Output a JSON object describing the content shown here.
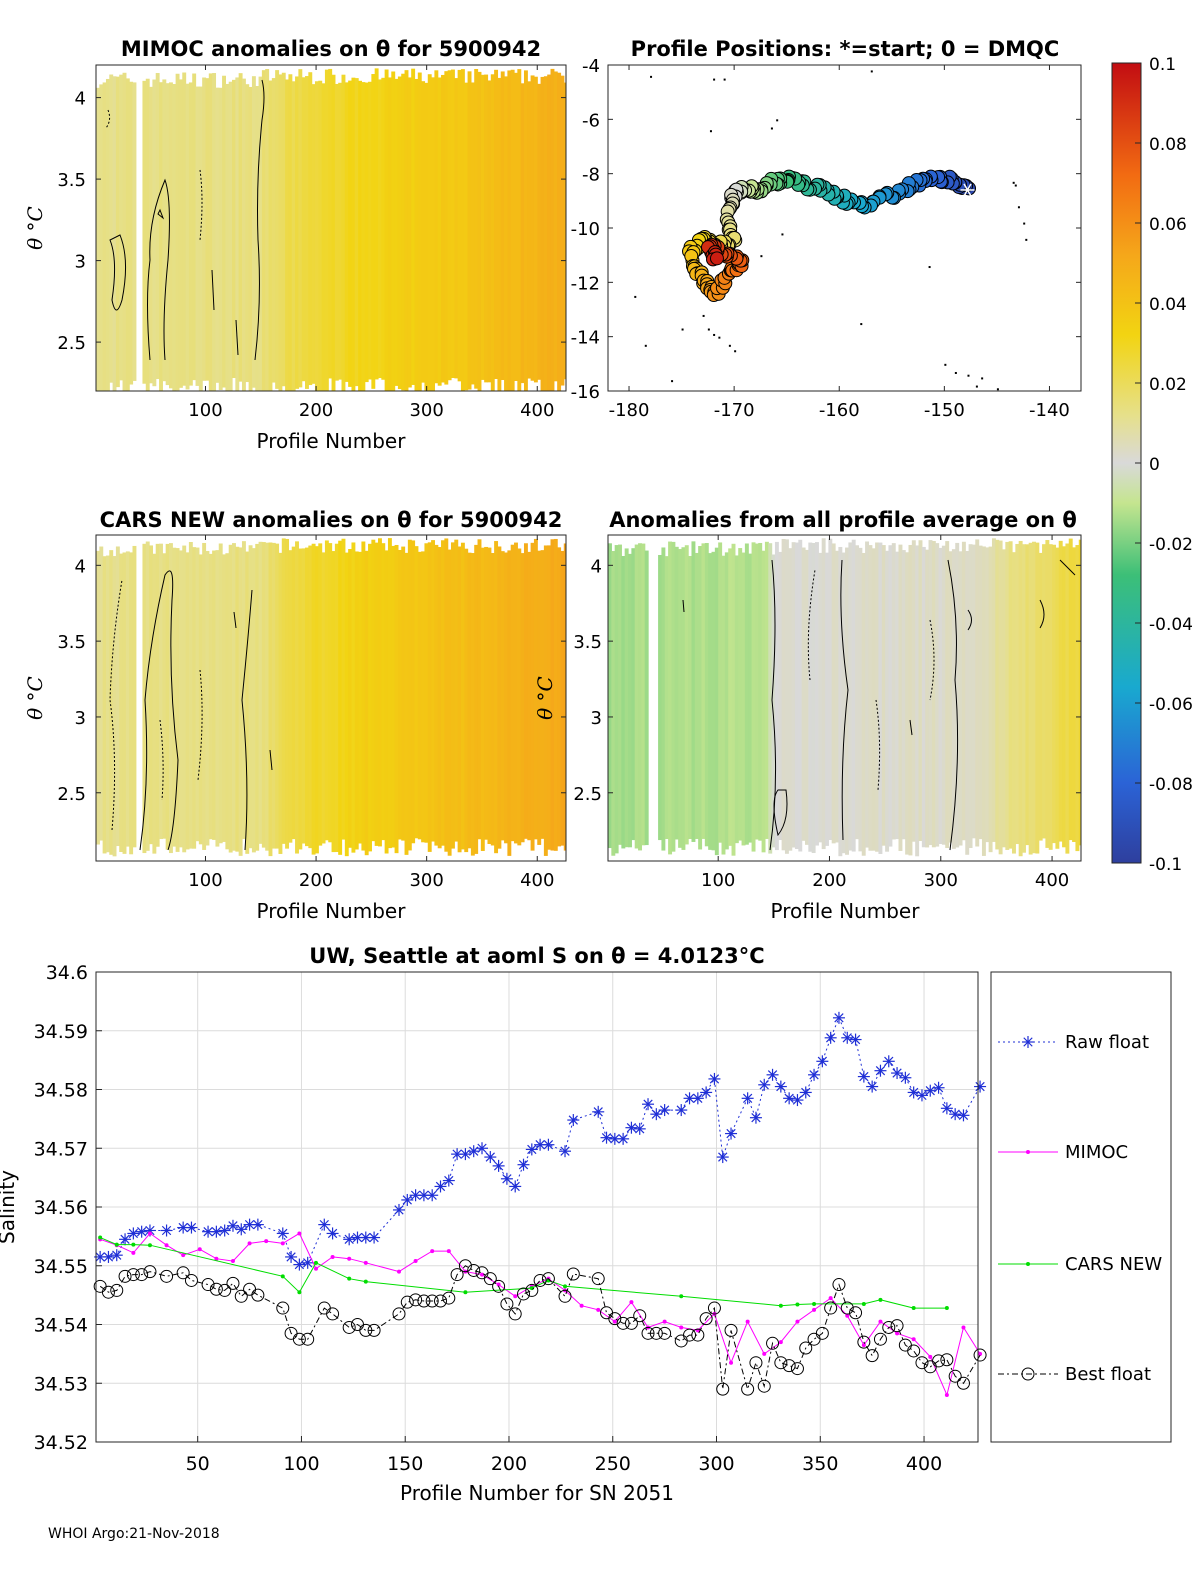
{
  "footer": "WHOI Argo:21-Nov-2018",
  "colors": {
    "raw": "#1f2fd6",
    "mimoc": "#ff00ff",
    "cars": "#00dd00",
    "best": "#000000",
    "grid": "#dcdcdc"
  },
  "colorbar": {
    "ticks": [
      "0.1",
      "0.08",
      "0.06",
      "0.04",
      "0.02",
      "0",
      "-0.02",
      "-0.04",
      "-0.06",
      "-0.08",
      "-0.1"
    ],
    "range": [
      -0.1,
      0.1
    ]
  },
  "chart_data": [
    {
      "type": "heatmap",
      "title": "MIMOC anomalies on θ  for 5900942",
      "xlabel": "Profile Number",
      "ylabel": "θ °C",
      "xlim": [
        1,
        426
      ],
      "ylim": [
        2.2,
        4.2
      ],
      "xticks": [
        "100",
        "200",
        "300",
        "400"
      ],
      "yticks": [
        "2.5",
        "3",
        "3.5",
        "4"
      ],
      "anomaly_trend": [
        [
          1,
          0.012
        ],
        [
          150,
          0.014
        ],
        [
          175,
          0.022
        ],
        [
          230,
          0.03
        ],
        [
          330,
          0.038
        ],
        [
          426,
          0.05
        ]
      ]
    },
    {
      "type": "scatter",
      "title": "Profile Positions: *=start; 0 = DMQC",
      "xlim": [
        -182,
        -137
      ],
      "ylim": [
        -16,
        -4
      ],
      "xticks": [
        "-180",
        "-170",
        "-160",
        "-150",
        "-140"
      ],
      "yticks": [
        "-4",
        "-6",
        "-8",
        "-10",
        "-12",
        "-14",
        "-16"
      ],
      "track": [
        [
          -147.8,
          -8.6
        ],
        [
          -149.2,
          -8.3
        ],
        [
          -151,
          -8.1
        ],
        [
          -153,
          -8.4
        ],
        [
          -155,
          -8.8
        ],
        [
          -157.5,
          -9.1
        ],
        [
          -159.5,
          -9.0
        ],
        [
          -161.5,
          -8.6
        ],
        [
          -163.5,
          -8.4
        ],
        [
          -165,
          -8.2
        ],
        [
          -166.5,
          -8.3
        ],
        [
          -167.8,
          -8.6
        ],
        [
          -169,
          -8.5
        ],
        [
          -170,
          -8.7
        ],
        [
          -170.6,
          -9.5
        ],
        [
          -170,
          -10.5
        ],
        [
          -171.5,
          -10.6
        ],
        [
          -173,
          -10.4
        ],
        [
          -174.2,
          -10.9
        ],
        [
          -173.5,
          -11.6
        ],
        [
          -172.5,
          -12.1
        ],
        [
          -171.8,
          -12.5
        ],
        [
          -170.5,
          -11.6
        ],
        [
          -169.2,
          -11.3
        ],
        [
          -170.8,
          -10.9
        ],
        [
          -172.5,
          -10.7
        ],
        [
          -171.6,
          -11.3
        ]
      ]
    },
    {
      "type": "heatmap",
      "title": "CARS NEW anomalies on θ for 5900942",
      "xlabel": "Profile Number",
      "ylabel": "θ °C",
      "xlim": [
        1,
        426
      ],
      "ylim": [
        2.05,
        4.2
      ],
      "xticks": [
        "100",
        "200",
        "300",
        "400"
      ],
      "yticks": [
        "2.5",
        "3",
        "3.5",
        "4"
      ],
      "anomaly_trend": [
        [
          1,
          0.012
        ],
        [
          150,
          0.014
        ],
        [
          175,
          0.024
        ],
        [
          240,
          0.034
        ],
        [
          330,
          0.042
        ],
        [
          426,
          0.052
        ]
      ]
    },
    {
      "type": "heatmap",
      "title": "Anomalies from all profile average on θ",
      "xlabel": "Profile Number",
      "ylabel": "θ °C",
      "xlim": [
        1,
        426
      ],
      "ylim": [
        2.05,
        4.2
      ],
      "xticks": [
        "100",
        "200",
        "300",
        "400"
      ],
      "yticks": [
        "2.5",
        "3",
        "3.5",
        "4"
      ],
      "anomaly_trend": [
        [
          1,
          -0.014
        ],
        [
          140,
          -0.012
        ],
        [
          150,
          0.001
        ],
        [
          330,
          0.003
        ],
        [
          360,
          0.012
        ],
        [
          426,
          0.026
        ]
      ]
    },
    {
      "type": "line",
      "title": "UW, Seattle at aoml S on θ = 4.0123°C",
      "xlabel": "Profile Number for SN 2051",
      "ylabel": "Salinity",
      "xlim": [
        1,
        426
      ],
      "ylim": [
        34.52,
        34.6
      ],
      "xticks": [
        50,
        100,
        150,
        200,
        250,
        300,
        350,
        400
      ],
      "yticks": [
        "34.52",
        "34.53",
        "34.54",
        "34.55",
        "34.56",
        "34.57",
        "34.58",
        "34.59",
        "34.6"
      ],
      "legend_position": "outside-right",
      "series": [
        {
          "name": "Raw float",
          "x": [
            3,
            7,
            11,
            15,
            19,
            23,
            27,
            35,
            43,
            47,
            55,
            59,
            63,
            67,
            71,
            75,
            79,
            91,
            95,
            99,
            103,
            111,
            115,
            123,
            127,
            131,
            135,
            147,
            151,
            155,
            159,
            163,
            167,
            171,
            175,
            179,
            183,
            187,
            191,
            195,
            199,
            203,
            207,
            211,
            215,
            219,
            227,
            231,
            243,
            247,
            251,
            255,
            259,
            263,
            267,
            271,
            275,
            283,
            287,
            291,
            295,
            299,
            303,
            307,
            315,
            319,
            323,
            327,
            331,
            335,
            339,
            343,
            347,
            351,
            355,
            359,
            363,
            367,
            371,
            375,
            379,
            383,
            387,
            391,
            395,
            399,
            403,
            407,
            411,
            415,
            419,
            427
          ],
          "y": [
            34.5515,
            34.5515,
            34.5518,
            34.5545,
            34.5555,
            34.5558,
            34.556,
            34.556,
            34.5565,
            34.5565,
            34.5558,
            34.5558,
            34.556,
            34.5568,
            34.5562,
            34.557,
            34.557,
            34.5555,
            34.5515,
            34.5502,
            34.5505,
            34.557,
            34.5555,
            34.5545,
            34.5548,
            34.5548,
            34.5548,
            34.5595,
            34.5612,
            34.562,
            34.562,
            34.562,
            34.5635,
            34.5645,
            34.569,
            34.569,
            34.5695,
            34.57,
            34.5685,
            34.567,
            34.5648,
            34.5635,
            34.5672,
            34.5698,
            34.5706,
            34.5706,
            34.5695,
            34.5748,
            34.5762,
            34.5718,
            34.5716,
            34.5716,
            34.5735,
            34.5733,
            34.5775,
            34.5758,
            34.5765,
            34.5765,
            34.5785,
            34.5785,
            34.5795,
            34.5818,
            34.5685,
            34.5725,
            34.5785,
            34.5752,
            34.5808,
            34.5825,
            34.5805,
            34.5785,
            34.5782,
            34.5795,
            34.5825,
            34.5848,
            34.5888,
            34.5922,
            34.5888,
            34.5885,
            34.5822,
            34.5805,
            34.5832,
            34.5848,
            34.5828,
            34.582,
            34.5795,
            34.579,
            34.5798,
            34.5803,
            34.5768,
            34.5758,
            34.5756,
            34.5805
          ]
        },
        {
          "name": "MIMOC",
          "x": [
            3,
            11,
            19,
            27,
            35,
            43,
            51,
            59,
            67,
            75,
            83,
            91,
            99,
            107,
            115,
            123,
            131,
            147,
            155,
            163,
            171,
            179,
            187,
            195,
            203,
            211,
            219,
            227,
            235,
            243,
            251,
            259,
            267,
            275,
            283,
            291,
            299,
            307,
            315,
            323,
            331,
            339,
            347,
            355,
            363,
            371,
            379,
            387,
            395,
            403,
            411,
            419,
            427
          ],
          "y": [
            34.5545,
            34.5535,
            34.5522,
            34.5555,
            34.5535,
            34.5518,
            34.5528,
            34.5512,
            34.5508,
            34.5538,
            34.5542,
            34.5538,
            34.5555,
            34.5495,
            34.5515,
            34.5512,
            34.5505,
            34.549,
            34.5508,
            34.5525,
            34.5525,
            34.549,
            34.5485,
            34.5468,
            34.5448,
            34.5465,
            34.5478,
            34.5458,
            34.5432,
            34.5425,
            34.5405,
            34.5438,
            34.5395,
            34.5405,
            34.5395,
            34.539,
            34.5418,
            34.5335,
            34.5405,
            34.535,
            34.537,
            34.5405,
            34.5425,
            34.5445,
            34.5415,
            34.5365,
            34.5405,
            34.5385,
            34.5375,
            34.5345,
            34.528,
            34.5395,
            34.535
          ]
        },
        {
          "name": "CARS NEW",
          "x": [
            3,
            11,
            19,
            27,
            91,
            99,
            107,
            123,
            131,
            179,
            211,
            219,
            227,
            283,
            331,
            339,
            347,
            371,
            379,
            395,
            411
          ],
          "y": [
            34.5548,
            34.5536,
            34.5536,
            34.5535,
            34.5482,
            34.5455,
            34.5505,
            34.5478,
            34.5473,
            34.5455,
            34.5462,
            34.5475,
            34.5465,
            34.5448,
            34.5432,
            34.5434,
            34.5435,
            34.5435,
            34.5442,
            34.5428,
            34.5428
          ]
        },
        {
          "name": "Best float",
          "x": [
            3,
            7,
            11,
            15,
            19,
            23,
            27,
            35,
            43,
            47,
            55,
            59,
            63,
            67,
            71,
            75,
            79,
            91,
            95,
            99,
            103,
            111,
            115,
            123,
            127,
            131,
            135,
            147,
            151,
            155,
            159,
            163,
            167,
            171,
            175,
            179,
            183,
            187,
            191,
            195,
            199,
            203,
            207,
            211,
            215,
            219,
            227,
            231,
            243,
            247,
            251,
            255,
            259,
            263,
            267,
            271,
            275,
            283,
            287,
            291,
            295,
            299,
            303,
            307,
            315,
            319,
            323,
            327,
            331,
            335,
            339,
            343,
            347,
            351,
            355,
            359,
            363,
            367,
            371,
            375,
            379,
            383,
            387,
            391,
            395,
            399,
            403,
            407,
            411,
            415,
            419,
            427
          ],
          "y": [
            34.5465,
            34.5455,
            34.5458,
            34.5482,
            34.5485,
            34.5485,
            34.549,
            34.5482,
            34.5488,
            34.5475,
            34.5468,
            34.546,
            34.5458,
            34.547,
            34.5448,
            34.546,
            34.545,
            34.5428,
            34.5385,
            34.5375,
            34.5375,
            34.5428,
            34.5418,
            34.5395,
            34.54,
            34.539,
            34.539,
            34.5418,
            34.5438,
            34.5442,
            34.544,
            34.544,
            34.544,
            34.5445,
            34.5485,
            34.55,
            34.5492,
            34.5488,
            34.5478,
            34.5465,
            34.5435,
            34.5418,
            34.5452,
            34.5458,
            34.5475,
            34.5478,
            34.5448,
            34.5486,
            34.5478,
            34.542,
            34.541,
            34.5402,
            34.5402,
            34.5415,
            34.5385,
            34.5385,
            34.5385,
            34.5372,
            34.5382,
            34.5382,
            34.541,
            34.5428,
            34.529,
            34.539,
            34.529,
            34.5335,
            34.5295,
            34.5368,
            34.5335,
            34.533,
            34.5325,
            34.536,
            34.5375,
            34.5385,
            34.5428,
            34.5468,
            34.5428,
            34.542,
            34.537,
            34.5347,
            34.5375,
            34.5395,
            34.5398,
            34.5365,
            34.5355,
            34.5335,
            34.5328,
            34.5338,
            34.534,
            34.5312,
            34.53,
            34.5348
          ]
        }
      ]
    }
  ]
}
